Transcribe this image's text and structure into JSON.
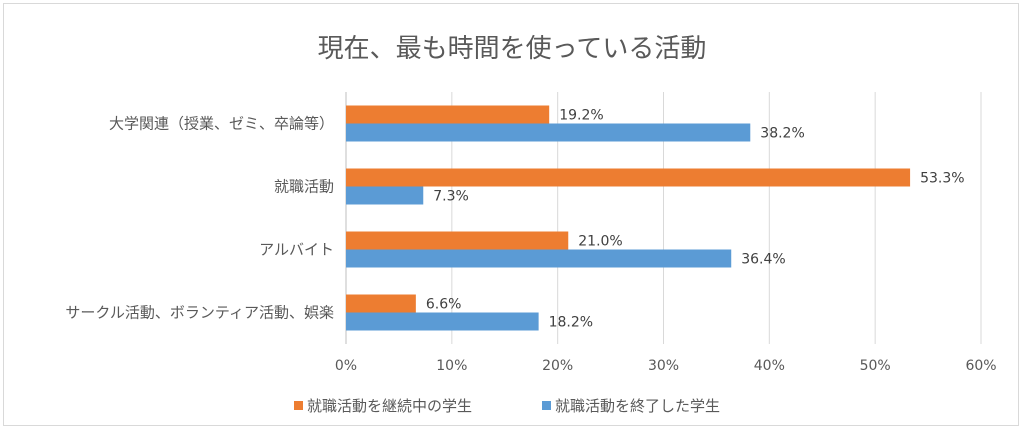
{
  "chart_data": {
    "type": "bar",
    "orientation": "horizontal",
    "title": "現在、最も時間を使っている活動",
    "categories": [
      "大学関連（授業、ゼミ、卒論等）",
      "就職活動",
      "アルバイト",
      "サークル活動、ボランティア活動、娯楽"
    ],
    "series": [
      {
        "name": "就職活動を継続中の学生",
        "color": "#ed7d31",
        "values": [
          19.2,
          53.3,
          21.0,
          6.6
        ],
        "labels": [
          "19.2%",
          "53.3%",
          "21.0%",
          "6.6%"
        ]
      },
      {
        "name": "就職活動を終了した学生",
        "color": "#5b9bd5",
        "values": [
          38.2,
          7.3,
          36.4,
          18.2
        ],
        "labels": [
          "38.2%",
          "7.3%",
          "36.4%",
          "18.2%"
        ]
      }
    ],
    "xlim": [
      0,
      60
    ],
    "ticks": [
      0,
      10,
      20,
      30,
      40,
      50,
      60
    ],
    "tick_labels": [
      "0%",
      "10%",
      "20%",
      "30%",
      "40%",
      "50%",
      "60%"
    ],
    "grid": true,
    "legend": "bottom"
  }
}
